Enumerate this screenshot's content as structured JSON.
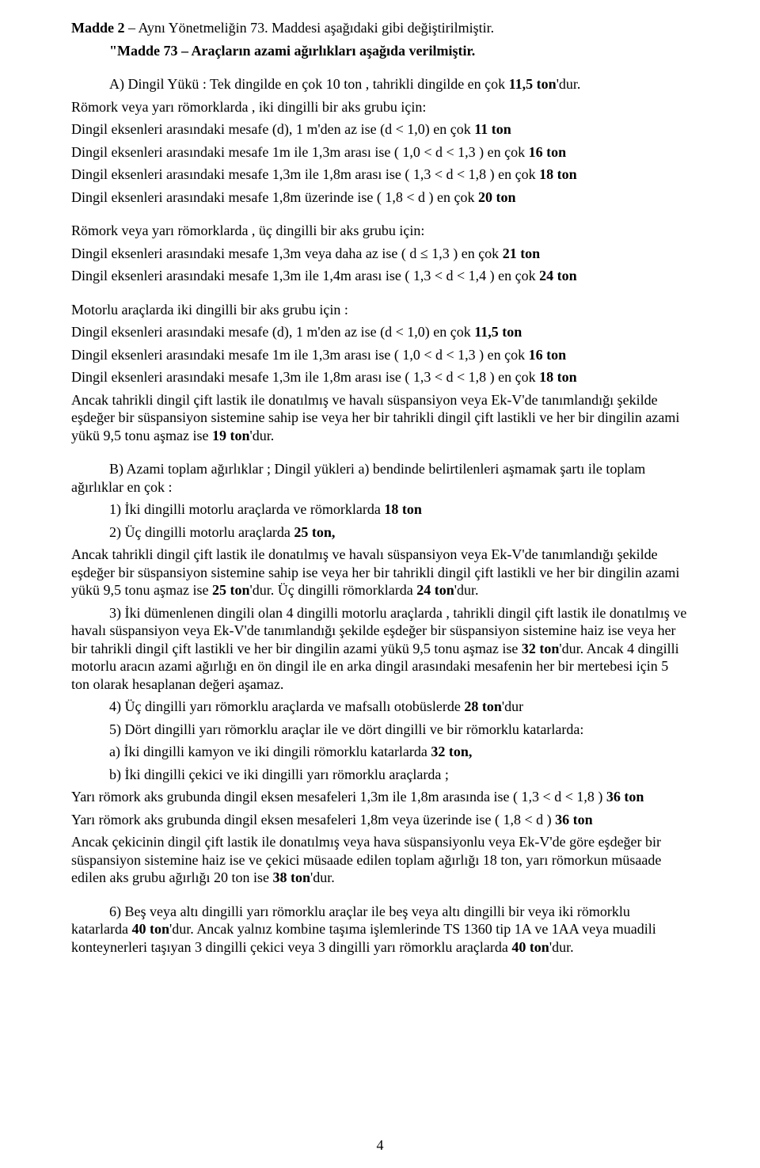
{
  "doc": {
    "madde2_title": "Madde 2",
    "madde2_text": " – Aynı Yönetmeliğin 73. Maddesi aşağıdaki gibi değiştirilmiştir.",
    "madde73_quote": "\"Madde 73 – Araçların azami ağırlıkları aşağıda verilmiştir.",
    "a_lead": "A)  Dingil Yükü : Tek dingilde en çok 10 ton , tahrikli dingilde en çok ",
    "a_lead_bold": "11,5 ton",
    "a_lead_tail": "'dur.",
    "a1": "Römork veya yarı römorklarda , iki dingilli bir aks grubu için:",
    "a2_pre": "Dingil eksenleri arasındaki mesafe (d), 1 m'den az ise (d < 1,0) en çok ",
    "a2_b": "11 ton",
    "a3_pre": "Dingil eksenleri arasındaki mesafe 1m  ile  1,3m  arası ise ( 1,0 < d < 1,3 ) en çok ",
    "a3_b": "16 ton",
    "a4_pre": "Dingil eksenleri arasındaki mesafe 1,3m  ile  1,8m  arası ise ( 1,3 < d < 1,8 ) en çok ",
    "a4_b": "18 ton",
    "a5_pre": "Dingil eksenleri arasındaki mesafe 1,8m üzerinde ise ( 1,8 < d  ) en çok ",
    "a5_b": "20 ton",
    "b1": "Römork veya yarı römorklarda , üç dingilli bir aks grubu için:",
    "b2_pre": "Dingil eksenleri arasındaki mesafe 1,3m veya daha az ise  ( d ≤  1,3 ) en çok ",
    "b2_b": "21 ton",
    "b3_pre": "Dingil eksenleri arasındaki mesafe 1,3m  ile  1,4m  arası ise ( 1,3 < d < 1,4 ) en çok ",
    "b3_b": "24 ton",
    "c1": "Motorlu araçlarda iki dingilli bir aks grubu için :",
    "c2_pre": "Dingil eksenleri arasındaki mesafe (d), 1 m'den az ise (d < 1,0) en çok ",
    "c2_b": "11,5 ton",
    "c3_pre": "Dingil eksenleri arasındaki mesafe 1m  ile  1,3m  arası ise ( 1,0 < d < 1,3 ) en çok ",
    "c3_b": "16 ton",
    "c4_pre": "Dingil eksenleri arasındaki mesafe 1,3m  ile  1,8m  arası ise ( 1,3 < d < 1,8 ) en çok ",
    "c4_b": "18 ton",
    "c5_pre": "Ancak tahrikli dingil çift lastik ile donatılmış ve havalı süspansiyon veya Ek-V'de tanımlandığı şekilde eşdeğer bir süspansiyon sistemine sahip ise veya her bir tahrikli dingil çift lastikli ve her bir dingilin azami yükü 9,5 tonu aşmaz ise ",
    "c5_b": "19 ton",
    "c5_tail": "'dur.",
    "bB_lead": "B) Azami toplam ağırlıklar ; Dingil yükleri a) bendinde belirtilenleri aşmamak şartı ile toplam ağırlıklar en çok :",
    "bB1_pre": "1)  İki dingilli motorlu araçlarda ve römorklarda ",
    "bB1_b": "18 ton",
    "bB2_pre": "2)  Üç dingilli motorlu araçlarda ",
    "bB2_b": "25 ton,",
    "bB2_tail_pre": "Ancak tahrikli dingil çift lastik ile donatılmış ve havalı süspansiyon veya Ek-V'de tanımlandığı şekilde eşdeğer bir süspansiyon sistemine sahip ise veya her bir tahrikli dingil çift lastikli ve her bir dingilin azami yükü 9,5 tonu aşmaz ise ",
    "bB2_tail_b1": "25 ton",
    "bB2_tail_mid": "'dur. Üç dingilli römorklarda ",
    "bB2_tail_b2": "24 ton",
    "bB2_tail_end": "'dur.",
    "bB3_pre": "3)  İki dümenlenen dingili olan 4 dingilli motorlu araçlarda , tahrikli dingil çift lastik ile donatılmış ve havalı süspansiyon veya Ek-V'de tanımlandığı şekilde eşdeğer bir süspansiyon sistemine haiz ise veya her bir tahrikli dingil çift lastikli ve her bir dingilin azami yükü 9,5 tonu aşmaz ise ",
    "bB3_b": "32 ton",
    "bB3_tail": "'dur. Ancak 4 dingilli motorlu aracın azami ağırlığı en ön dingil ile en arka dingil arasındaki mesafenin her bir mertebesi için 5 ton olarak hesaplanan değeri aşamaz.",
    "bB4_pre": "4)  Üç dingilli yarı römorklu araçlarda ve mafsallı otobüslerde ",
    "bB4_b": "28 ton",
    "bB4_tail": "'dur",
    "bB5": "5)  Dört  dingilli yarı römorklu araçlar ile ve dört  dingilli ve bir römorklu katarlarda:",
    "bB5a_pre": "a) İki dingilli kamyon ve iki dingili römorklu katarlarda  ",
    "bB5a_b": "32 ton,",
    "bB5b": "b) İki dingilli çekici ve iki dingilli yarı römorklu araçlarda ;",
    "bB5_y1_pre": "Yarı römork aks grubunda dingil eksen mesafeleri 1,3m ile 1,8m arasında ise ( 1,3 < d < 1,8 )  ",
    "bB5_y1_b": "36 ton",
    "bB5_y2_pre": " Yarı römork aks grubunda dingil eksen mesafeleri 1,8m veya üzerinde  ise ( 1,8 < d )  ",
    "bB5_y2_b": "36 ton",
    "bB5_tail_pre": "Ancak çekicinin  dingil çift lastik ile donatılmış veya hava süspansiyonlu  veya Ek-V'de göre eşdeğer bir süspansiyon sistemine haiz ise ve çekici müsaade edilen toplam ağırlığı 18 ton, yarı römorkun müsaade edilen aks grubu ağırlığı 20 ton ise  ",
    "bB5_tail_b": "38 ton",
    "bB5_tail_end": "'dur.",
    "bB6_pre": "6) Beş veya altı dingilli yarı römorklu araçlar ile beş veya altı dingilli bir veya iki römorklu katarlarda ",
    "bB6_b1": "40 ton",
    "bB6_mid": "'dur. Ancak yalnız kombine taşıma işlemlerinde TS 1360 tip 1A ve 1AA veya muadili konteynerleri taşıyan 3 dingilli çekici veya 3 dingilli yarı römorklu araçlarda ",
    "bB6_b2": "40 ton",
    "bB6_end": "'dur.",
    "page_num": "4"
  }
}
